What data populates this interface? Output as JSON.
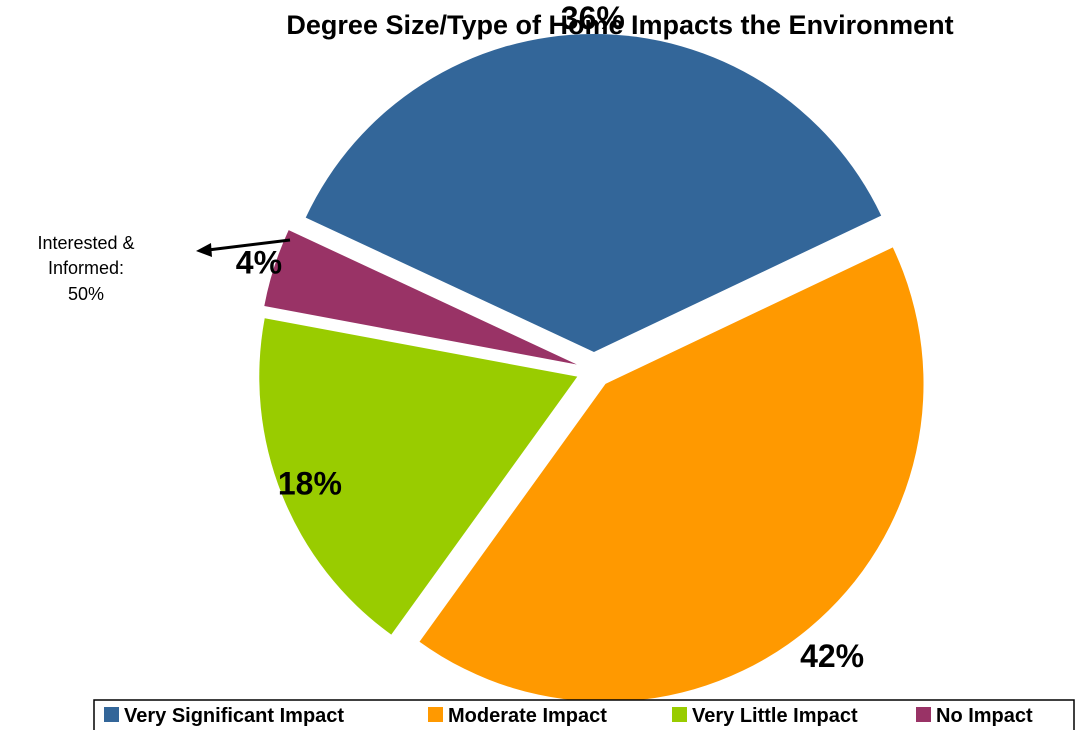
{
  "chart_data": {
    "type": "pie",
    "title": "Degree Size/Type of Home Impacts the Environment",
    "slices": [
      {
        "name": "Very Significant Impact",
        "value": 36,
        "label": "36%",
        "color": "#336699"
      },
      {
        "name": "Moderate Impact",
        "value": 42,
        "label": "42%",
        "color": "#FF9900"
      },
      {
        "name": "Very Little Impact",
        "value": 18,
        "label": "18%",
        "color": "#99CC00"
      },
      {
        "name": "No Impact",
        "value": 4,
        "label": "4%",
        "color": "#993366"
      }
    ],
    "annotation": {
      "lines": [
        "Interested &",
        "Informed:",
        "50%"
      ]
    },
    "legend": {
      "position": "bottom"
    }
  }
}
